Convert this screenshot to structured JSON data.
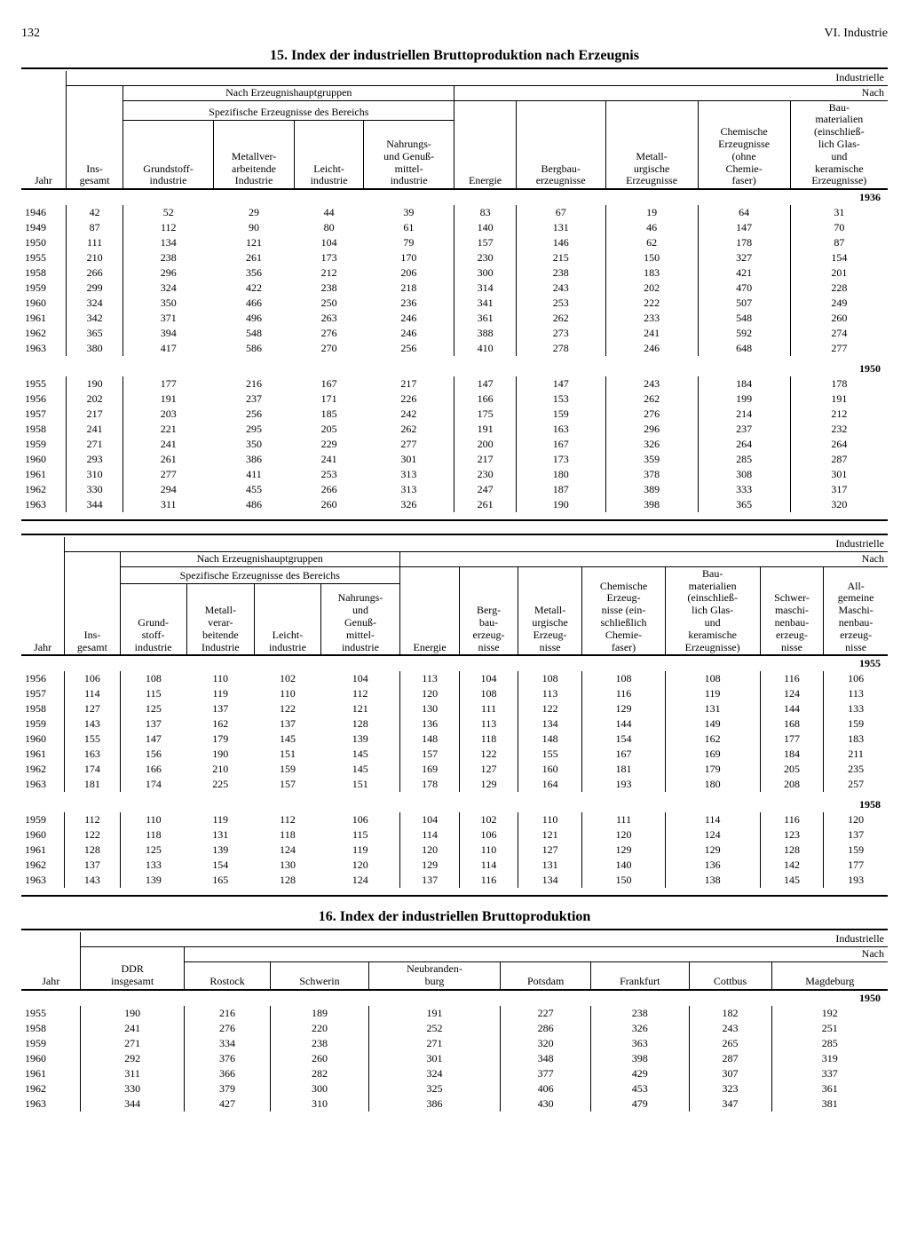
{
  "page_number": "132",
  "chapter": "VI. Industrie",
  "table15": {
    "title": "15. Index der industriellen Bruttoproduktion nach Erzeugnis",
    "columns": [
      "Jahr",
      "Ins-\ngesamt",
      "Grundstoff-\nindustrie",
      "Metallver-\narbeitende\nIndustrie",
      "Leicht-\nindustrie",
      "Nahrungs-\nund Genuß-\nmittel-\nindustrie",
      "Energie",
      "Bergbau-\nerzeugnisse",
      "Metall-\nurgische\nErzeugnisse",
      "Chemische\nErzeugnisse\n(ohne\nChemie-\nfaser)",
      "Bau-\nmaterialien\n(einschließ-\nlich Glas-\nund\nkeramische\nErzeugnisse)"
    ],
    "group_header": "Nach Erzeugnishauptgruppen",
    "sub_header": "Spezifische Erzeugnisse des Bereichs",
    "corner_top": "Industrielle",
    "corner_sub": "Nach",
    "base1": "1936",
    "rows1": [
      [
        "1946",
        "42",
        "52",
        "29",
        "44",
        "39",
        "83",
        "67",
        "19",
        "64",
        "31"
      ],
      [
        "1949",
        "87",
        "112",
        "90",
        "80",
        "61",
        "140",
        "131",
        "46",
        "147",
        "70"
      ],
      [
        "1950",
        "111",
        "134",
        "121",
        "104",
        "79",
        "157",
        "146",
        "62",
        "178",
        "87"
      ],
      [
        "1955",
        "210",
        "238",
        "261",
        "173",
        "170",
        "230",
        "215",
        "150",
        "327",
        "154"
      ],
      [
        "1958",
        "266",
        "296",
        "356",
        "212",
        "206",
        "300",
        "238",
        "183",
        "421",
        "201"
      ],
      [
        "1959",
        "299",
        "324",
        "422",
        "238",
        "218",
        "314",
        "243",
        "202",
        "470",
        "228"
      ],
      [
        "1960",
        "324",
        "350",
        "466",
        "250",
        "236",
        "341",
        "253",
        "222",
        "507",
        "249"
      ],
      [
        "1961",
        "342",
        "371",
        "496",
        "263",
        "246",
        "361",
        "262",
        "233",
        "548",
        "260"
      ],
      [
        "1962",
        "365",
        "394",
        "548",
        "276",
        "246",
        "388",
        "273",
        "241",
        "592",
        "274"
      ],
      [
        "1963",
        "380",
        "417",
        "586",
        "270",
        "256",
        "410",
        "278",
        "246",
        "648",
        "277"
      ]
    ],
    "base2": "1950",
    "rows2": [
      [
        "1955",
        "190",
        "177",
        "216",
        "167",
        "217",
        "147",
        "147",
        "243",
        "184",
        "178"
      ],
      [
        "1956",
        "202",
        "191",
        "237",
        "171",
        "226",
        "166",
        "153",
        "262",
        "199",
        "191"
      ],
      [
        "1957",
        "217",
        "203",
        "256",
        "185",
        "242",
        "175",
        "159",
        "276",
        "214",
        "212"
      ],
      [
        "1958",
        "241",
        "221",
        "295",
        "205",
        "262",
        "191",
        "163",
        "296",
        "237",
        "232"
      ],
      [
        "1959",
        "271",
        "241",
        "350",
        "229",
        "277",
        "200",
        "167",
        "326",
        "264",
        "264"
      ],
      [
        "1960",
        "293",
        "261",
        "386",
        "241",
        "301",
        "217",
        "173",
        "359",
        "285",
        "287"
      ],
      [
        "1961",
        "310",
        "277",
        "411",
        "253",
        "313",
        "230",
        "180",
        "378",
        "308",
        "301"
      ],
      [
        "1962",
        "330",
        "294",
        "455",
        "266",
        "313",
        "247",
        "187",
        "389",
        "333",
        "317"
      ],
      [
        "1963",
        "344",
        "311",
        "486",
        "260",
        "326",
        "261",
        "190",
        "398",
        "365",
        "320"
      ]
    ]
  },
  "table15b": {
    "columns": [
      "Jahr",
      "Ins-\ngesamt",
      "Grund-\nstoff-\nindustrie",
      "Metall-\nverar-\nbeitende\nIndustrie",
      "Leicht-\nindustrie",
      "Nahrungs-\nund\nGenuß-\nmittel-\nindustrie",
      "Energie",
      "Berg-\nbau-\nerzeug-\nnisse",
      "Metall-\nurgische\nErzeug-\nnisse",
      "Chemische\nErzeug-\nnisse (ein-\nschließlich\nChemie-\nfaser)",
      "Bau-\nmaterialien\n(einschließ-\nlich Glas-\nund\nkeramische\nErzeugnisse)",
      "Schwer-\nmaschi-\nnenbau-\nerzeug-\nnisse",
      "All-\ngemeine\nMaschi-\nnenbau-\nerzeug-\nnisse"
    ],
    "base1": "1955",
    "rows1": [
      [
        "1956",
        "106",
        "108",
        "110",
        "102",
        "104",
        "113",
        "104",
        "108",
        "108",
        "108",
        "116",
        "106"
      ],
      [
        "1957",
        "114",
        "115",
        "119",
        "110",
        "112",
        "120",
        "108",
        "113",
        "116",
        "119",
        "124",
        "113"
      ],
      [
        "1958",
        "127",
        "125",
        "137",
        "122",
        "121",
        "130",
        "111",
        "122",
        "129",
        "131",
        "144",
        "133"
      ],
      [
        "1959",
        "143",
        "137",
        "162",
        "137",
        "128",
        "136",
        "113",
        "134",
        "144",
        "149",
        "168",
        "159"
      ],
      [
        "1960",
        "155",
        "147",
        "179",
        "145",
        "139",
        "148",
        "118",
        "148",
        "154",
        "162",
        "177",
        "183"
      ],
      [
        "1961",
        "163",
        "156",
        "190",
        "151",
        "145",
        "157",
        "122",
        "155",
        "167",
        "169",
        "184",
        "211"
      ],
      [
        "1962",
        "174",
        "166",
        "210",
        "159",
        "145",
        "169",
        "127",
        "160",
        "181",
        "179",
        "205",
        "235"
      ],
      [
        "1963",
        "181",
        "174",
        "225",
        "157",
        "151",
        "178",
        "129",
        "164",
        "193",
        "180",
        "208",
        "257"
      ]
    ],
    "base2": "1958",
    "rows2": [
      [
        "1959",
        "112",
        "110",
        "119",
        "112",
        "106",
        "104",
        "102",
        "110",
        "111",
        "114",
        "116",
        "120"
      ],
      [
        "1960",
        "122",
        "118",
        "131",
        "118",
        "115",
        "114",
        "106",
        "121",
        "120",
        "124",
        "123",
        "137"
      ],
      [
        "1961",
        "128",
        "125",
        "139",
        "124",
        "119",
        "120",
        "110",
        "127",
        "129",
        "129",
        "128",
        "159"
      ],
      [
        "1962",
        "137",
        "133",
        "154",
        "130",
        "120",
        "129",
        "114",
        "131",
        "140",
        "136",
        "142",
        "177"
      ],
      [
        "1963",
        "143",
        "139",
        "165",
        "128",
        "124",
        "137",
        "116",
        "134",
        "150",
        "138",
        "145",
        "193"
      ]
    ]
  },
  "table16": {
    "title": "16. Index der industriellen Bruttoproduktion",
    "columns": [
      "Jahr",
      "DDR\ninsgesamt",
      "Rostock",
      "Schwerin",
      "Neubranden-\nburg",
      "Potsdam",
      "Frankfurt",
      "Cottbus",
      "Magdeburg"
    ],
    "base": "1950",
    "rows": [
      [
        "1955",
        "190",
        "216",
        "189",
        "191",
        "227",
        "238",
        "182",
        "192"
      ],
      [
        "1958",
        "241",
        "276",
        "220",
        "252",
        "286",
        "326",
        "243",
        "251"
      ],
      [
        "1959",
        "271",
        "334",
        "238",
        "271",
        "320",
        "363",
        "265",
        "285"
      ],
      [
        "1960",
        "292",
        "376",
        "260",
        "301",
        "348",
        "398",
        "287",
        "319"
      ],
      [
        "1961",
        "311",
        "366",
        "282",
        "324",
        "377",
        "429",
        "307",
        "337"
      ],
      [
        "1962",
        "330",
        "379",
        "300",
        "325",
        "406",
        "453",
        "323",
        "361"
      ],
      [
        "1963",
        "344",
        "427",
        "310",
        "386",
        "430",
        "479",
        "347",
        "381"
      ]
    ]
  }
}
